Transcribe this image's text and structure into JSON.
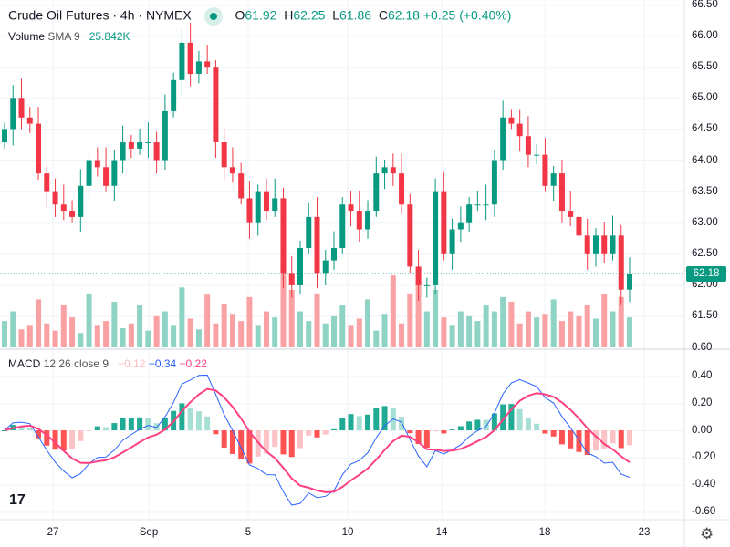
{
  "header": {
    "title": "Crude Oil Futures · 4h · NYMEX",
    "o_label": "O",
    "o": "61.92",
    "h_label": "H",
    "h": "62.25",
    "l_label": "L",
    "l": "61.86",
    "c_label": "C",
    "c": "62.18",
    "change": "+0.25 (+0.40%)"
  },
  "volume": {
    "label": "Volume",
    "sma": "SMA 9",
    "value": "25.842K"
  },
  "macd": {
    "label": "MACD",
    "params": "12 26 close 9",
    "hist": "−0.12",
    "macd": "−0.34",
    "signal": "−0.22"
  },
  "last_price": "62.18",
  "colors": {
    "up": "#089981",
    "down": "#f23645",
    "macd": "#2962ff",
    "signal": "#ff4081"
  },
  "price_axis": [
    "66.50",
    "66.00",
    "65.50",
    "65.00",
    "64.50",
    "64.00",
    "63.50",
    "63.00",
    "62.50",
    "62.00",
    "61.50",
    "0.60"
  ],
  "macd_axis": [
    "0.40",
    "0.20",
    "0.00",
    "-0.20",
    "-0.40",
    "-0.60"
  ],
  "x_axis": [
    "27",
    "Sep",
    "5",
    "10",
    "14",
    "18",
    "23"
  ],
  "chart_data": {
    "type": "candlestick",
    "open_first": 64.3,
    "closes": [
      64.5,
      65.0,
      64.7,
      64.6,
      63.8,
      63.5,
      63.3,
      63.2,
      63.1,
      63.6,
      64.0,
      63.9,
      63.6,
      64.0,
      64.3,
      64.2,
      64.3,
      64.3,
      64.0,
      64.8,
      65.3,
      65.9,
      65.4,
      65.6,
      65.5,
      64.3,
      63.9,
      63.8,
      63.4,
      63.0,
      63.5,
      63.2,
      63.4,
      62.2,
      62.0,
      62.6,
      63.1,
      62.2,
      62.4,
      62.6,
      63.3,
      63.2,
      62.9,
      63.2,
      63.8,
      63.9,
      63.8,
      63.3,
      62.3,
      62.0,
      62.0,
      63.5,
      62.5,
      62.9,
      63.0,
      63.3,
      63.3,
      63.3,
      64.0,
      64.7,
      64.6,
      64.4,
      64.1,
      64.1,
      63.6,
      63.8,
      63.2,
      63.1,
      62.8,
      62.5,
      62.8,
      62.5,
      62.8,
      61.93,
      62.18
    ],
    "volumes": [
      22,
      30,
      15,
      18,
      40,
      20,
      14,
      35,
      25,
      12,
      45,
      18,
      22,
      38,
      16,
      20,
      35,
      14,
      26,
      30,
      18,
      50,
      24,
      15,
      44,
      20,
      36,
      28,
      22,
      42,
      18,
      30,
      25,
      70,
      48,
      30,
      22,
      45,
      20,
      26,
      35,
      18,
      24,
      40,
      14,
      28,
      60,
      20,
      45,
      55,
      30,
      48,
      25,
      18,
      30,
      26,
      22,
      35,
      30,
      42,
      38,
      20,
      30,
      25,
      28,
      40,
      22,
      30,
      26,
      35,
      24,
      45,
      30,
      42,
      25
    ]
  }
}
